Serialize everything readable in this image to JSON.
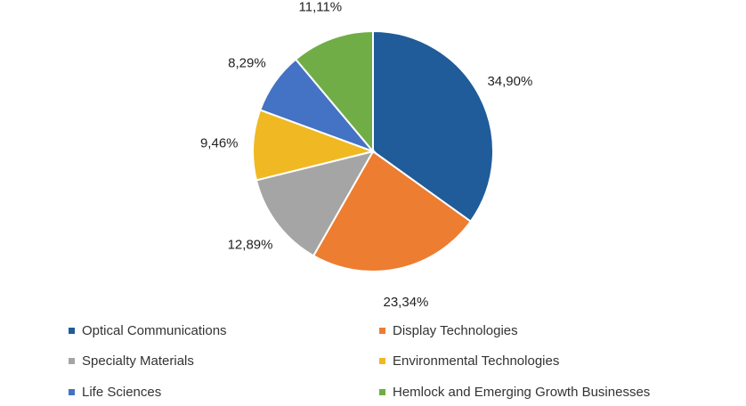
{
  "chart_data": {
    "type": "pie",
    "series": [
      {
        "name": "Optical Communications",
        "value": 34.9,
        "label": "34,90%",
        "color": "#1f5c99"
      },
      {
        "name": "Display Technologies",
        "value": 23.34,
        "label": "23,34%",
        "color": "#ed7d31"
      },
      {
        "name": "Specialty Materials",
        "value": 12.89,
        "label": "12,89%",
        "color": "#a5a5a5"
      },
      {
        "name": "Environmental Technologies",
        "value": 9.46,
        "label": "9,46%",
        "color": "#f0b923"
      },
      {
        "name": "Life Sciences",
        "value": 8.29,
        "label": "8,29%",
        "color": "#4472c4"
      },
      {
        "name": "Hemlock and Emerging Growth Businesses",
        "value": 11.11,
        "label": "11,11%",
        "color": "#70ad47"
      }
    ],
    "legend_position": "bottom"
  }
}
